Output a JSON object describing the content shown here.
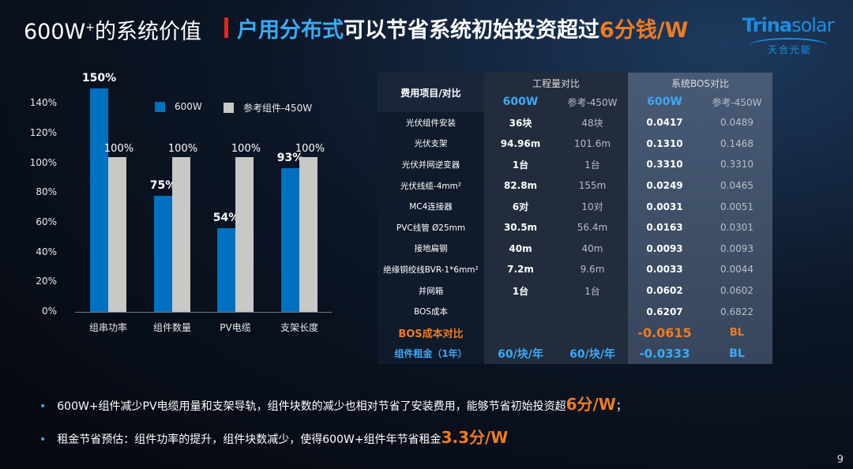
{
  "header": {
    "title_left": "600W",
    "title_left_sup": "+",
    "title_left_rest": "的系统价值",
    "title_blue": "户用分布式",
    "title_white": "可以节省系统初始投资超过",
    "title_orange": "6分钱/W"
  },
  "logo": {
    "brand_a": "Trina",
    "brand_b": "solar",
    "brand_cn": "天合光能"
  },
  "colors": {
    "accent_blue": "#3ba9f5",
    "bar_blue": "#0070c0",
    "bar_gray": "#c8c8c4",
    "orange": "#f07b22",
    "red": "#e8231c"
  },
  "chart_data": {
    "type": "bar",
    "categories": [
      "组串功率",
      "组件数量",
      "PV电缆",
      "支架长度"
    ],
    "series": [
      {
        "name": "600W",
        "values": [
          150,
          75,
          54,
          93
        ],
        "labels": [
          "150%",
          "75%",
          "54%",
          "93%"
        ]
      },
      {
        "name": "参考组件-450W",
        "values": [
          100,
          100,
          100,
          100
        ],
        "labels": [
          "100%",
          "100%",
          "100%",
          "100%"
        ]
      }
    ],
    "yticks": [
      "0%",
      "20%",
      "40%",
      "60%",
      "80%",
      "100%",
      "120%",
      "140%"
    ],
    "ylim": [
      0,
      150
    ],
    "legend": "top-right"
  },
  "table": {
    "head_item": "费用项目/对比",
    "group1": "工程量对比",
    "group2": "系统BOS对比",
    "sub": [
      "600W",
      "参考-450W",
      "600W",
      "参考-450W"
    ],
    "rows": [
      [
        "光伏组件安装",
        "36块",
        "48块",
        "0.0417",
        "0.0489"
      ],
      [
        "光伏支架",
        "94.96m",
        "101.6m",
        "0.1310",
        "0.1468"
      ],
      [
        "光伏并网逆变器",
        "1台",
        "1台",
        "0.3310",
        "0.3310"
      ],
      [
        "光伏线缆-4mm²",
        "82.8m",
        "155m",
        "0.0249",
        "0.0465"
      ],
      [
        "MC4连接器",
        "6对",
        "10对",
        "0.0031",
        "0.0051"
      ],
      [
        "PVC线管 Ø25mm",
        "30.5m",
        "56.4m",
        "0.0163",
        "0.0301"
      ],
      [
        "接地扁钢",
        "40m",
        "40m",
        "0.0093",
        "0.0093"
      ],
      [
        "绝缘铜绞线BVR-1*6mm²",
        "7.2m",
        "9.6m",
        "0.0033",
        "0.0044"
      ],
      [
        "并网箱",
        "1台",
        "1台",
        "0.0602",
        "0.0602"
      ],
      [
        "BOS成本",
        "",
        "",
        "0.6207",
        "0.6822"
      ]
    ],
    "compare": [
      "BOS成本对比",
      "",
      "",
      "-0.0615",
      "BL"
    ],
    "rent": [
      "组件租金（1年）",
      "60/块/年",
      "60/块/年",
      "-0.0333",
      "BL"
    ]
  },
  "bullets": [
    {
      "text": "600W+组件减少PV电缆用量和支架导轨，组件块数的减少也相对节省了安装费用，能够节省初始投资超",
      "emph": "6分/W",
      "tail": "；"
    },
    {
      "text": "租金节省预估：组件功率的提升，组件块数减少，使得600W+组件年节省租金",
      "emph": "3.3分/W",
      "tail": ""
    }
  ],
  "page_number": "9"
}
